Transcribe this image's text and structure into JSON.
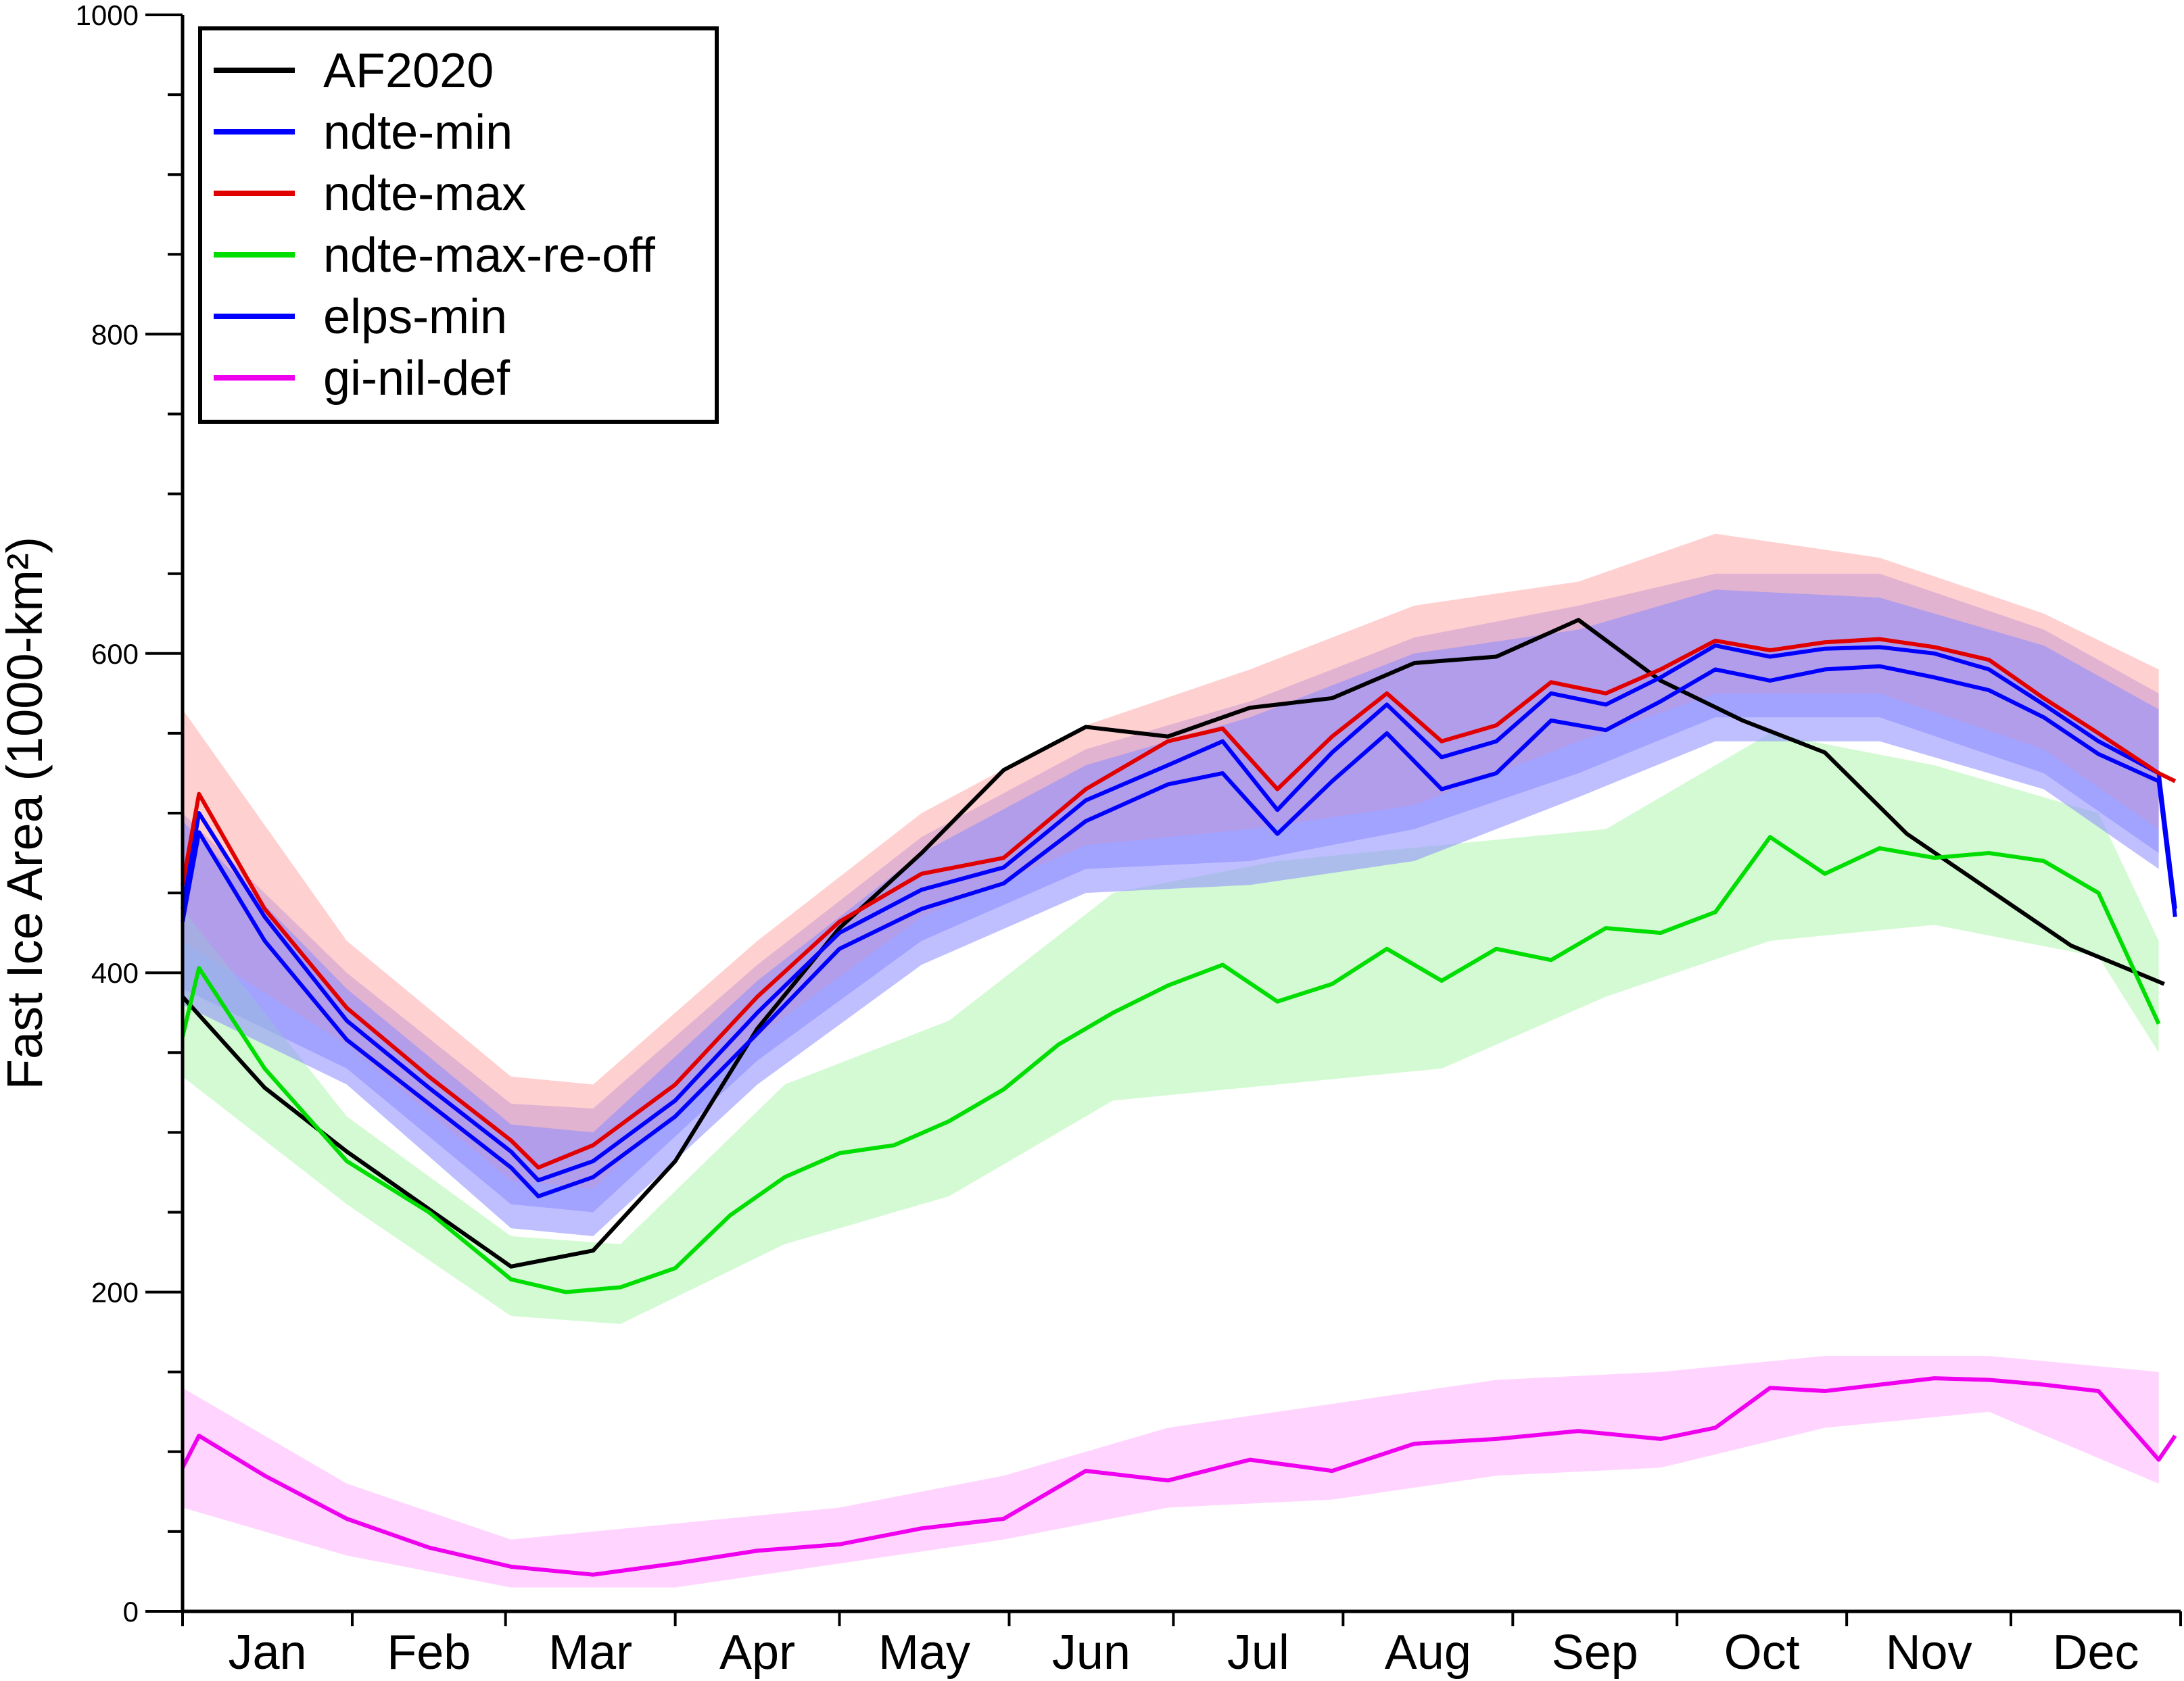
{
  "chart_data": {
    "type": "line",
    "xlabel": "",
    "ylabel": "Fast Ice Area (1000-km²)",
    "ylim": [
      0,
      1000
    ],
    "yticks": [
      0,
      200,
      400,
      600,
      800,
      1000
    ],
    "xlim": [
      1,
      366
    ],
    "months": [
      "Jan",
      "Feb",
      "Mar",
      "Apr",
      "May",
      "Jun",
      "Jul",
      "Aug",
      "Sep",
      "Oct",
      "Nov",
      "Dec"
    ],
    "grid": false,
    "legend_position": "top-left",
    "series": [
      {
        "name": "AF2020",
        "color": "#000000",
        "points": [
          [
            1,
            385
          ],
          [
            16,
            328
          ],
          [
            31,
            288
          ],
          [
            46,
            252
          ],
          [
            61,
            216
          ],
          [
            76,
            226
          ],
          [
            91,
            282
          ],
          [
            106,
            365
          ],
          [
            121,
            428
          ],
          [
            136,
            475
          ],
          [
            151,
            527
          ],
          [
            166,
            554
          ],
          [
            181,
            548
          ],
          [
            196,
            566
          ],
          [
            211,
            572
          ],
          [
            226,
            594
          ],
          [
            241,
            598
          ],
          [
            256,
            621
          ],
          [
            271,
            583
          ],
          [
            286,
            558
          ],
          [
            301,
            538
          ],
          [
            316,
            487
          ],
          [
            331,
            452
          ],
          [
            346,
            417
          ],
          [
            363,
            393
          ]
        ]
      },
      {
        "name": "ndte-min",
        "color": "#0000ff",
        "band_color": "#8a8aff",
        "points": [
          [
            1,
            440
          ],
          [
            4,
            500
          ],
          [
            16,
            435
          ],
          [
            31,
            370
          ],
          [
            46,
            328
          ],
          [
            61,
            288
          ],
          [
            66,
            270
          ],
          [
            76,
            282
          ],
          [
            91,
            320
          ],
          [
            106,
            375
          ],
          [
            121,
            425
          ],
          [
            136,
            452
          ],
          [
            151,
            466
          ],
          [
            166,
            508
          ],
          [
            181,
            530
          ],
          [
            191,
            545
          ],
          [
            201,
            502
          ],
          [
            211,
            538
          ],
          [
            221,
            568
          ],
          [
            231,
            535
          ],
          [
            241,
            545
          ],
          [
            251,
            575
          ],
          [
            261,
            568
          ],
          [
            271,
            585
          ],
          [
            281,
            605
          ],
          [
            291,
            598
          ],
          [
            301,
            603
          ],
          [
            311,
            604
          ],
          [
            321,
            600
          ],
          [
            331,
            590
          ],
          [
            341,
            568
          ],
          [
            351,
            545
          ],
          [
            362,
            525
          ],
          [
            365,
            440
          ]
        ],
        "band": [
          [
            1,
            390,
            500
          ],
          [
            31,
            340,
            400
          ],
          [
            61,
            255,
            318
          ],
          [
            76,
            250,
            315
          ],
          [
            106,
            345,
            405
          ],
          [
            136,
            420,
            485
          ],
          [
            166,
            465,
            540
          ],
          [
            196,
            470,
            570
          ],
          [
            226,
            490,
            610
          ],
          [
            256,
            525,
            630
          ],
          [
            281,
            560,
            650
          ],
          [
            311,
            560,
            650
          ],
          [
            341,
            525,
            615
          ],
          [
            362,
            475,
            575
          ]
        ]
      },
      {
        "name": "ndte-max",
        "color": "#e00000",
        "band_color": "#ffaaaa",
        "points": [
          [
            1,
            455
          ],
          [
            4,
            512
          ],
          [
            16,
            440
          ],
          [
            31,
            378
          ],
          [
            46,
            335
          ],
          [
            61,
            295
          ],
          [
            66,
            278
          ],
          [
            76,
            292
          ],
          [
            91,
            330
          ],
          [
            106,
            385
          ],
          [
            121,
            432
          ],
          [
            136,
            462
          ],
          [
            151,
            472
          ],
          [
            166,
            515
          ],
          [
            181,
            545
          ],
          [
            191,
            553
          ],
          [
            201,
            515
          ],
          [
            211,
            548
          ],
          [
            221,
            575
          ],
          [
            231,
            545
          ],
          [
            241,
            555
          ],
          [
            251,
            582
          ],
          [
            261,
            575
          ],
          [
            271,
            590
          ],
          [
            281,
            608
          ],
          [
            291,
            602
          ],
          [
            301,
            607
          ],
          [
            311,
            609
          ],
          [
            321,
            604
          ],
          [
            331,
            596
          ],
          [
            341,
            572
          ],
          [
            351,
            550
          ],
          [
            362,
            525
          ],
          [
            365,
            520
          ]
        ],
        "band": [
          [
            1,
            420,
            565
          ],
          [
            31,
            355,
            420
          ],
          [
            61,
            270,
            335
          ],
          [
            76,
            265,
            330
          ],
          [
            106,
            360,
            420
          ],
          [
            136,
            435,
            500
          ],
          [
            166,
            480,
            555
          ],
          [
            196,
            490,
            590
          ],
          [
            226,
            505,
            630
          ],
          [
            256,
            545,
            645
          ],
          [
            281,
            575,
            675
          ],
          [
            311,
            575,
            660
          ],
          [
            341,
            540,
            625
          ],
          [
            362,
            490,
            590
          ]
        ]
      },
      {
        "name": "ndte-max-re-off",
        "color": "#00dd00",
        "band_color": "#b0f5b0",
        "points": [
          [
            1,
            360
          ],
          [
            4,
            403
          ],
          [
            16,
            340
          ],
          [
            31,
            282
          ],
          [
            46,
            250
          ],
          [
            61,
            208
          ],
          [
            71,
            200
          ],
          [
            81,
            203
          ],
          [
            91,
            215
          ],
          [
            101,
            248
          ],
          [
            111,
            272
          ],
          [
            121,
            287
          ],
          [
            131,
            292
          ],
          [
            141,
            307
          ],
          [
            151,
            327
          ],
          [
            161,
            355
          ],
          [
            171,
            375
          ],
          [
            181,
            392
          ],
          [
            191,
            405
          ],
          [
            201,
            382
          ],
          [
            211,
            393
          ],
          [
            221,
            415
          ],
          [
            231,
            395
          ],
          [
            241,
            415
          ],
          [
            251,
            408
          ],
          [
            261,
            428
          ],
          [
            271,
            425
          ],
          [
            281,
            438
          ],
          [
            291,
            485
          ],
          [
            301,
            462
          ],
          [
            311,
            478
          ],
          [
            321,
            472
          ],
          [
            331,
            475
          ],
          [
            341,
            470
          ],
          [
            351,
            450
          ],
          [
            362,
            368
          ]
        ],
        "band": [
          [
            1,
            335,
            440
          ],
          [
            31,
            255,
            310
          ],
          [
            61,
            185,
            235
          ],
          [
            81,
            180,
            230
          ],
          [
            111,
            230,
            330
          ],
          [
            141,
            260,
            370
          ],
          [
            171,
            320,
            450
          ],
          [
            201,
            330,
            470
          ],
          [
            231,
            340,
            480
          ],
          [
            261,
            385,
            490
          ],
          [
            291,
            420,
            550
          ],
          [
            321,
            430,
            530
          ],
          [
            351,
            410,
            500
          ],
          [
            362,
            350,
            420
          ]
        ]
      },
      {
        "name": "elps-min",
        "color": "#0000ff",
        "band_color": "#8a8aff",
        "points": [
          [
            1,
            432
          ],
          [
            4,
            488
          ],
          [
            16,
            420
          ],
          [
            31,
            358
          ],
          [
            46,
            318
          ],
          [
            61,
            278
          ],
          [
            66,
            260
          ],
          [
            76,
            272
          ],
          [
            91,
            310
          ],
          [
            106,
            362
          ],
          [
            121,
            415
          ],
          [
            136,
            440
          ],
          [
            151,
            456
          ],
          [
            166,
            495
          ],
          [
            181,
            518
          ],
          [
            191,
            525
          ],
          [
            201,
            487
          ],
          [
            211,
            520
          ],
          [
            221,
            550
          ],
          [
            231,
            515
          ],
          [
            241,
            525
          ],
          [
            251,
            558
          ],
          [
            261,
            552
          ],
          [
            271,
            570
          ],
          [
            281,
            590
          ],
          [
            291,
            583
          ],
          [
            301,
            590
          ],
          [
            311,
            592
          ],
          [
            321,
            585
          ],
          [
            331,
            577
          ],
          [
            341,
            560
          ],
          [
            351,
            537
          ],
          [
            362,
            520
          ],
          [
            365,
            435
          ]
        ],
        "band": [
          [
            1,
            380,
            495
          ],
          [
            31,
            330,
            390
          ],
          [
            61,
            240,
            305
          ],
          [
            76,
            235,
            300
          ],
          [
            106,
            330,
            395
          ],
          [
            136,
            405,
            475
          ],
          [
            166,
            450,
            530
          ],
          [
            196,
            455,
            560
          ],
          [
            226,
            470,
            600
          ],
          [
            256,
            510,
            615
          ],
          [
            281,
            545,
            640
          ],
          [
            311,
            545,
            635
          ],
          [
            341,
            515,
            605
          ],
          [
            362,
            465,
            565
          ]
        ]
      },
      {
        "name": "gi-nil-def",
        "color": "#ee00ee",
        "band_color": "#ffb0ff",
        "points": [
          [
            1,
            90
          ],
          [
            4,
            110
          ],
          [
            16,
            85
          ],
          [
            31,
            58
          ],
          [
            46,
            40
          ],
          [
            61,
            28
          ],
          [
            76,
            23
          ],
          [
            91,
            30
          ],
          [
            106,
            38
          ],
          [
            121,
            42
          ],
          [
            136,
            52
          ],
          [
            151,
            58
          ],
          [
            166,
            88
          ],
          [
            181,
            82
          ],
          [
            196,
            95
          ],
          [
            211,
            88
          ],
          [
            226,
            105
          ],
          [
            241,
            108
          ],
          [
            256,
            113
          ],
          [
            271,
            108
          ],
          [
            281,
            115
          ],
          [
            291,
            140
          ],
          [
            301,
            138
          ],
          [
            311,
            142
          ],
          [
            321,
            146
          ],
          [
            331,
            145
          ],
          [
            341,
            142
          ],
          [
            351,
            138
          ],
          [
            362,
            95
          ],
          [
            365,
            110
          ]
        ],
        "band": [
          [
            1,
            65,
            140
          ],
          [
            31,
            35,
            80
          ],
          [
            61,
            15,
            45
          ],
          [
            91,
            15,
            55
          ],
          [
            121,
            30,
            65
          ],
          [
            151,
            45,
            85
          ],
          [
            181,
            65,
            115
          ],
          [
            211,
            70,
            130
          ],
          [
            241,
            85,
            145
          ],
          [
            271,
            90,
            150
          ],
          [
            301,
            115,
            160
          ],
          [
            331,
            125,
            160
          ],
          [
            362,
            80,
            150
          ]
        ]
      }
    ]
  }
}
